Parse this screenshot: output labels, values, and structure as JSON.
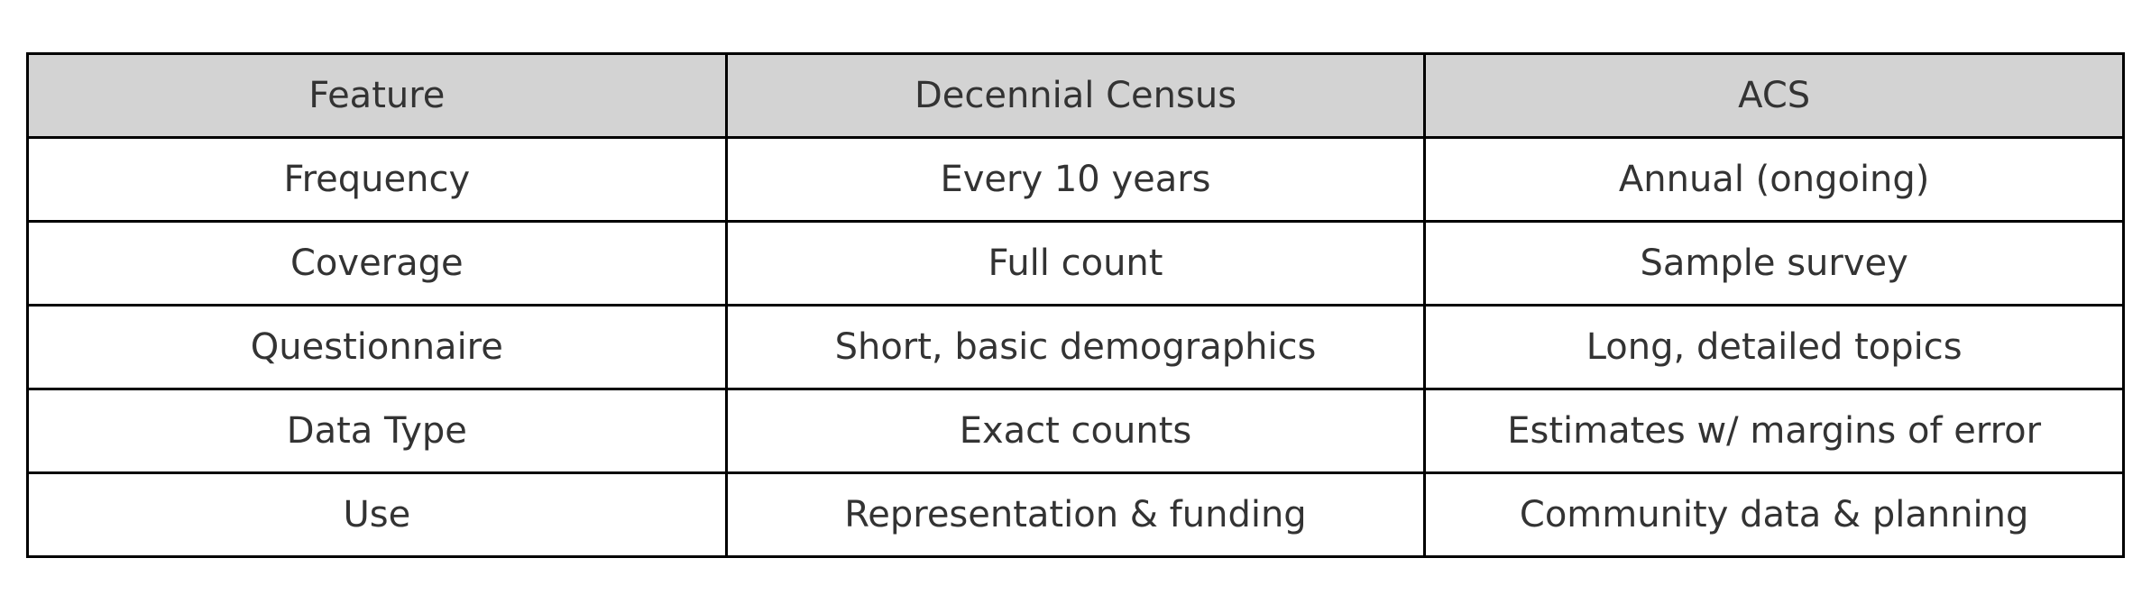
{
  "table": {
    "header": {
      "feature": "Feature",
      "decennial": "Decennial Census",
      "acs": "ACS"
    },
    "rows": [
      {
        "feature": "Frequency",
        "decennial": "Every 10 years",
        "acs": "Annual (ongoing)"
      },
      {
        "feature": "Coverage",
        "decennial": "Full count",
        "acs": "Sample survey"
      },
      {
        "feature": "Questionnaire",
        "decennial": "Short, basic demographics",
        "acs": "Long, detailed topics"
      },
      {
        "feature": "Data Type",
        "decennial": "Exact counts",
        "acs": "Estimates w/ margins of error"
      },
      {
        "feature": "Use",
        "decennial": "Representation & funding",
        "acs": "Community data & planning"
      }
    ]
  },
  "colors": {
    "header_bg": "#d3d3d3",
    "border": "#000000",
    "text": "#333333"
  }
}
